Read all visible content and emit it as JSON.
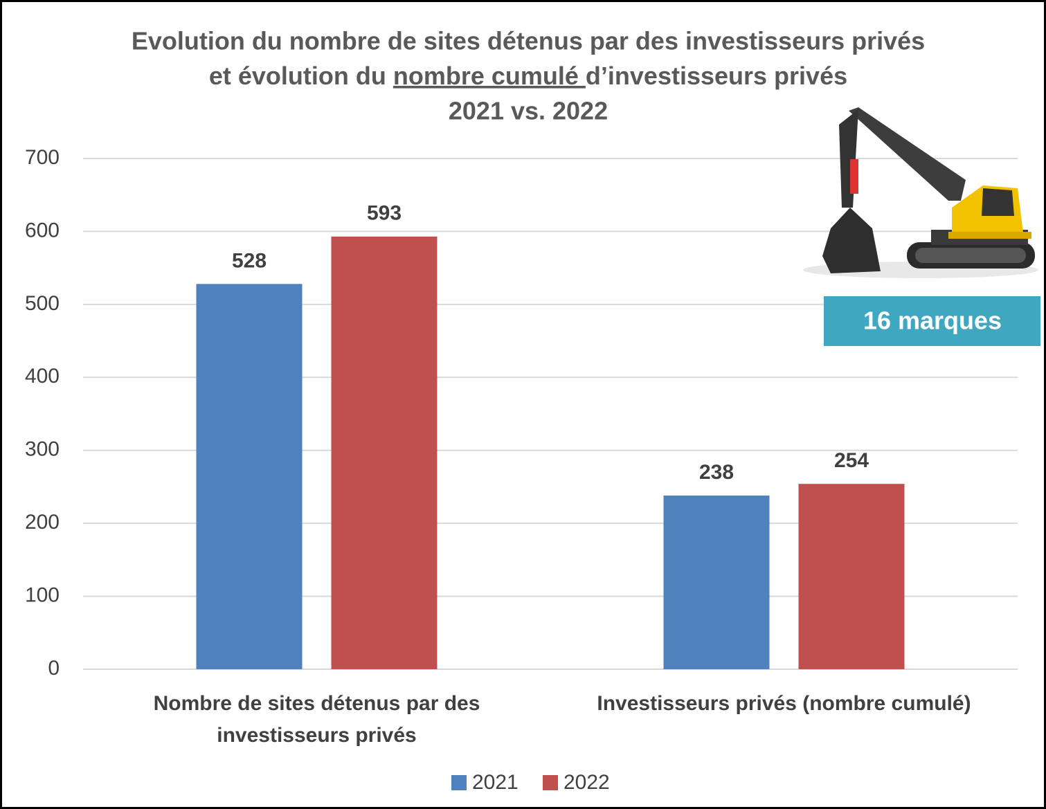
{
  "chart_data": {
    "type": "bar",
    "title": [
      "Evolution du nombre de sites détenus par des investisseurs privés",
      [
        "et évolution du ",
        "nombre cumulé ",
        "d’investisseurs privés"
      ],
      "2021 vs. 2022"
    ],
    "categories": [
      "Nombre de sites détenus par des investisseurs privés",
      "Investisseurs privés (nombre cumulé)"
    ],
    "series": [
      {
        "name": "2021",
        "color": "#4f81bd",
        "values": [
          528,
          238
        ]
      },
      {
        "name": "2022",
        "color": "#c0504d",
        "values": [
          593,
          254
        ]
      }
    ],
    "ylim": [
      0,
      700
    ],
    "yticks": [
      0,
      100,
      200,
      300,
      400,
      500,
      600,
      700
    ],
    "grid": true,
    "legend": "bottom",
    "annotation": "16 marques"
  }
}
